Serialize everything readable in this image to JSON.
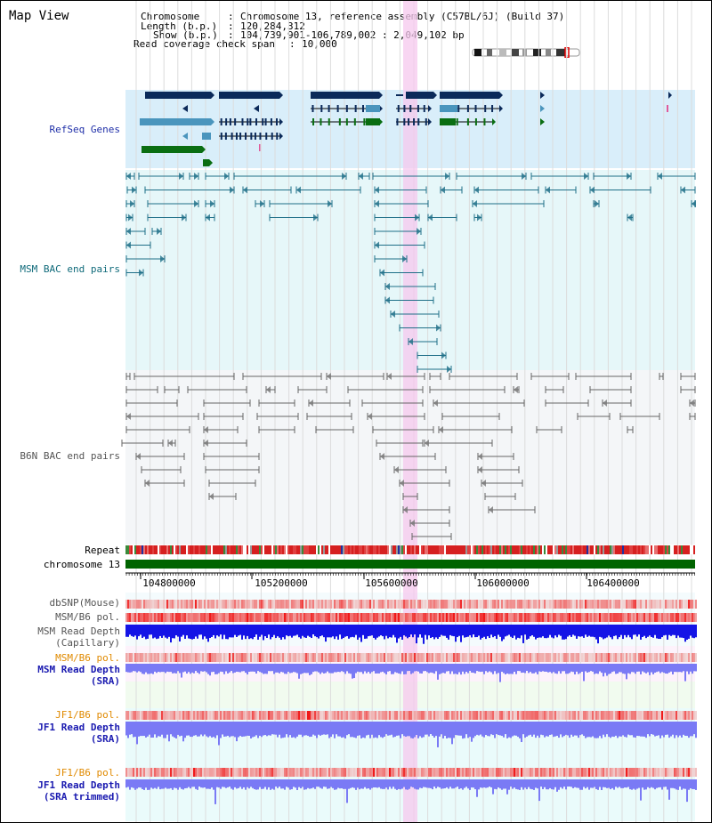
{
  "header": {
    "title": "Map View",
    "chromosome_label": "Chromosome",
    "chromosome_value": "Chromosome 13, reference assembly (C57BL/6J) (Build 37)",
    "length_label": "Length (b.p.)",
    "length_value": "120,284,312",
    "show_label": "Show (b.p.)",
    "show_value": "104,739,901-106,789,002 : 2,049,102 bp",
    "coverage_label": "Read coverage check span",
    "coverage_value": "10,000"
  },
  "tracks": {
    "refseq": "RefSeq Genes",
    "msm_bac": "MSM BAC end pairs",
    "b6n_bac": "B6N BAC end pairs",
    "repeat": "Repeat",
    "chromosome": "chromosome 13",
    "dbsnp": "dbSNP(Mouse)",
    "msm_b6_pol": "MSM/B6 pol.",
    "msm_depth_cap_1": "MSM Read Depth",
    "msm_depth_cap_2": "(Capillary)",
    "msm_b6_pol_2": "MSM/B6 pol.",
    "msm_depth_sra_1": "MSM Read Depth",
    "msm_depth_sra_2": "(SRA)",
    "jf1_b6_pol": "JF1/B6 pol.",
    "jf1_depth_sra_1": "JF1 Read Depth",
    "jf1_depth_sra_2": "(SRA)",
    "jf1_b6_pol_2": "JF1/B6 pol.",
    "jf1_depth_trim_1": "JF1 Read Depth",
    "jf1_depth_trim_2": "(SRA trimmed)"
  },
  "axis": {
    "ticks": [
      "104800000",
      "105200000",
      "105600000",
      "106000000",
      "106400000"
    ]
  },
  "colors": {
    "refseq_bg": "#d9eefa",
    "msm_bg": "#e6f7f9",
    "b6n_bg": "#f4f6f8",
    "highlight": "#f6c8ee",
    "chromosome_bar": "#006400",
    "navy_gene": "#0b2a5a",
    "steel_gene": "#4a95bd",
    "green_gene": "#0a6e12",
    "msm_pair": "#1f6f88",
    "b6n_pair": "#666666",
    "depth_blue": "#1414e6",
    "depth_light": "#7a7af5"
  }
}
